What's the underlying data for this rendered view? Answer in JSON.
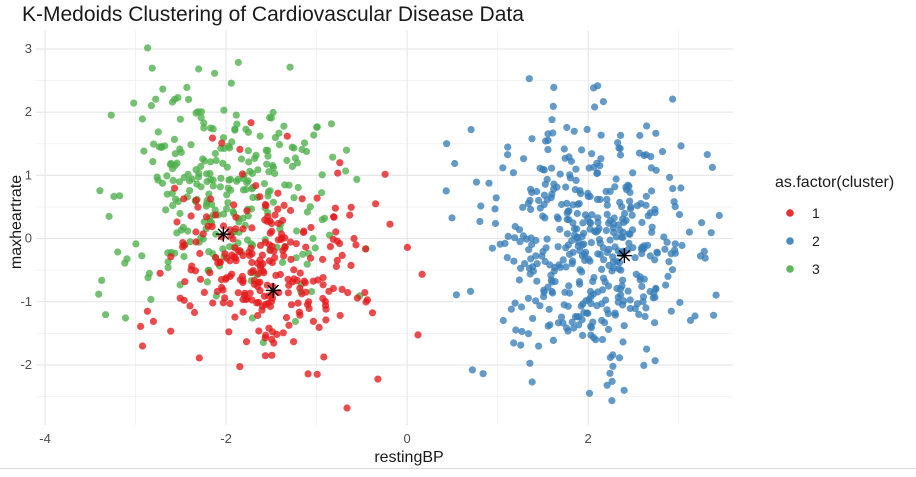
{
  "chart_data": {
    "type": "scatter",
    "title": "K-Medoids Clustering of Cardiovascular Disease Data",
    "xlabel": "restingBP",
    "ylabel": "maxheartrate",
    "xlim": [
      -4.1,
      3.6
    ],
    "ylim": [
      -2.95,
      3.3
    ],
    "x_ticks": [
      -4,
      -2,
      0,
      2
    ],
    "y_ticks": [
      -2,
      -1,
      0,
      1,
      2,
      3
    ],
    "grid": true,
    "legend": {
      "title": "as.factor(cluster)",
      "position": "right",
      "entries": [
        "1",
        "2",
        "3"
      ]
    },
    "series": [
      {
        "name": "1",
        "color": "#e41a1c",
        "center": [
          -1.6,
          -0.5
        ],
        "spread": [
          0.55,
          0.75
        ],
        "count": 270,
        "x_range": [
          -3.7,
          0.9
        ],
        "y_range": [
          -2.7,
          2.0
        ]
      },
      {
        "name": "2",
        "color": "#377eb8",
        "center": [
          2.0,
          -0.1
        ],
        "spread": [
          0.6,
          0.95
        ],
        "count": 460,
        "x_range": [
          0.2,
          3.5
        ],
        "y_range": [
          -2.6,
          3.0
        ]
      },
      {
        "name": "3",
        "color": "#4daf4a",
        "center": [
          -2.0,
          0.8
        ],
        "spread": [
          0.62,
          0.85
        ],
        "count": 280,
        "x_range": [
          -3.8,
          0.9
        ],
        "y_range": [
          -1.8,
          3.1
        ]
      }
    ],
    "medoids": [
      {
        "cluster": "3",
        "x": -2.03,
        "y": 0.07
      },
      {
        "cluster": "1",
        "x": -1.48,
        "y": -0.82
      },
      {
        "cluster": "2",
        "x": 2.4,
        "y": -0.27
      }
    ]
  }
}
